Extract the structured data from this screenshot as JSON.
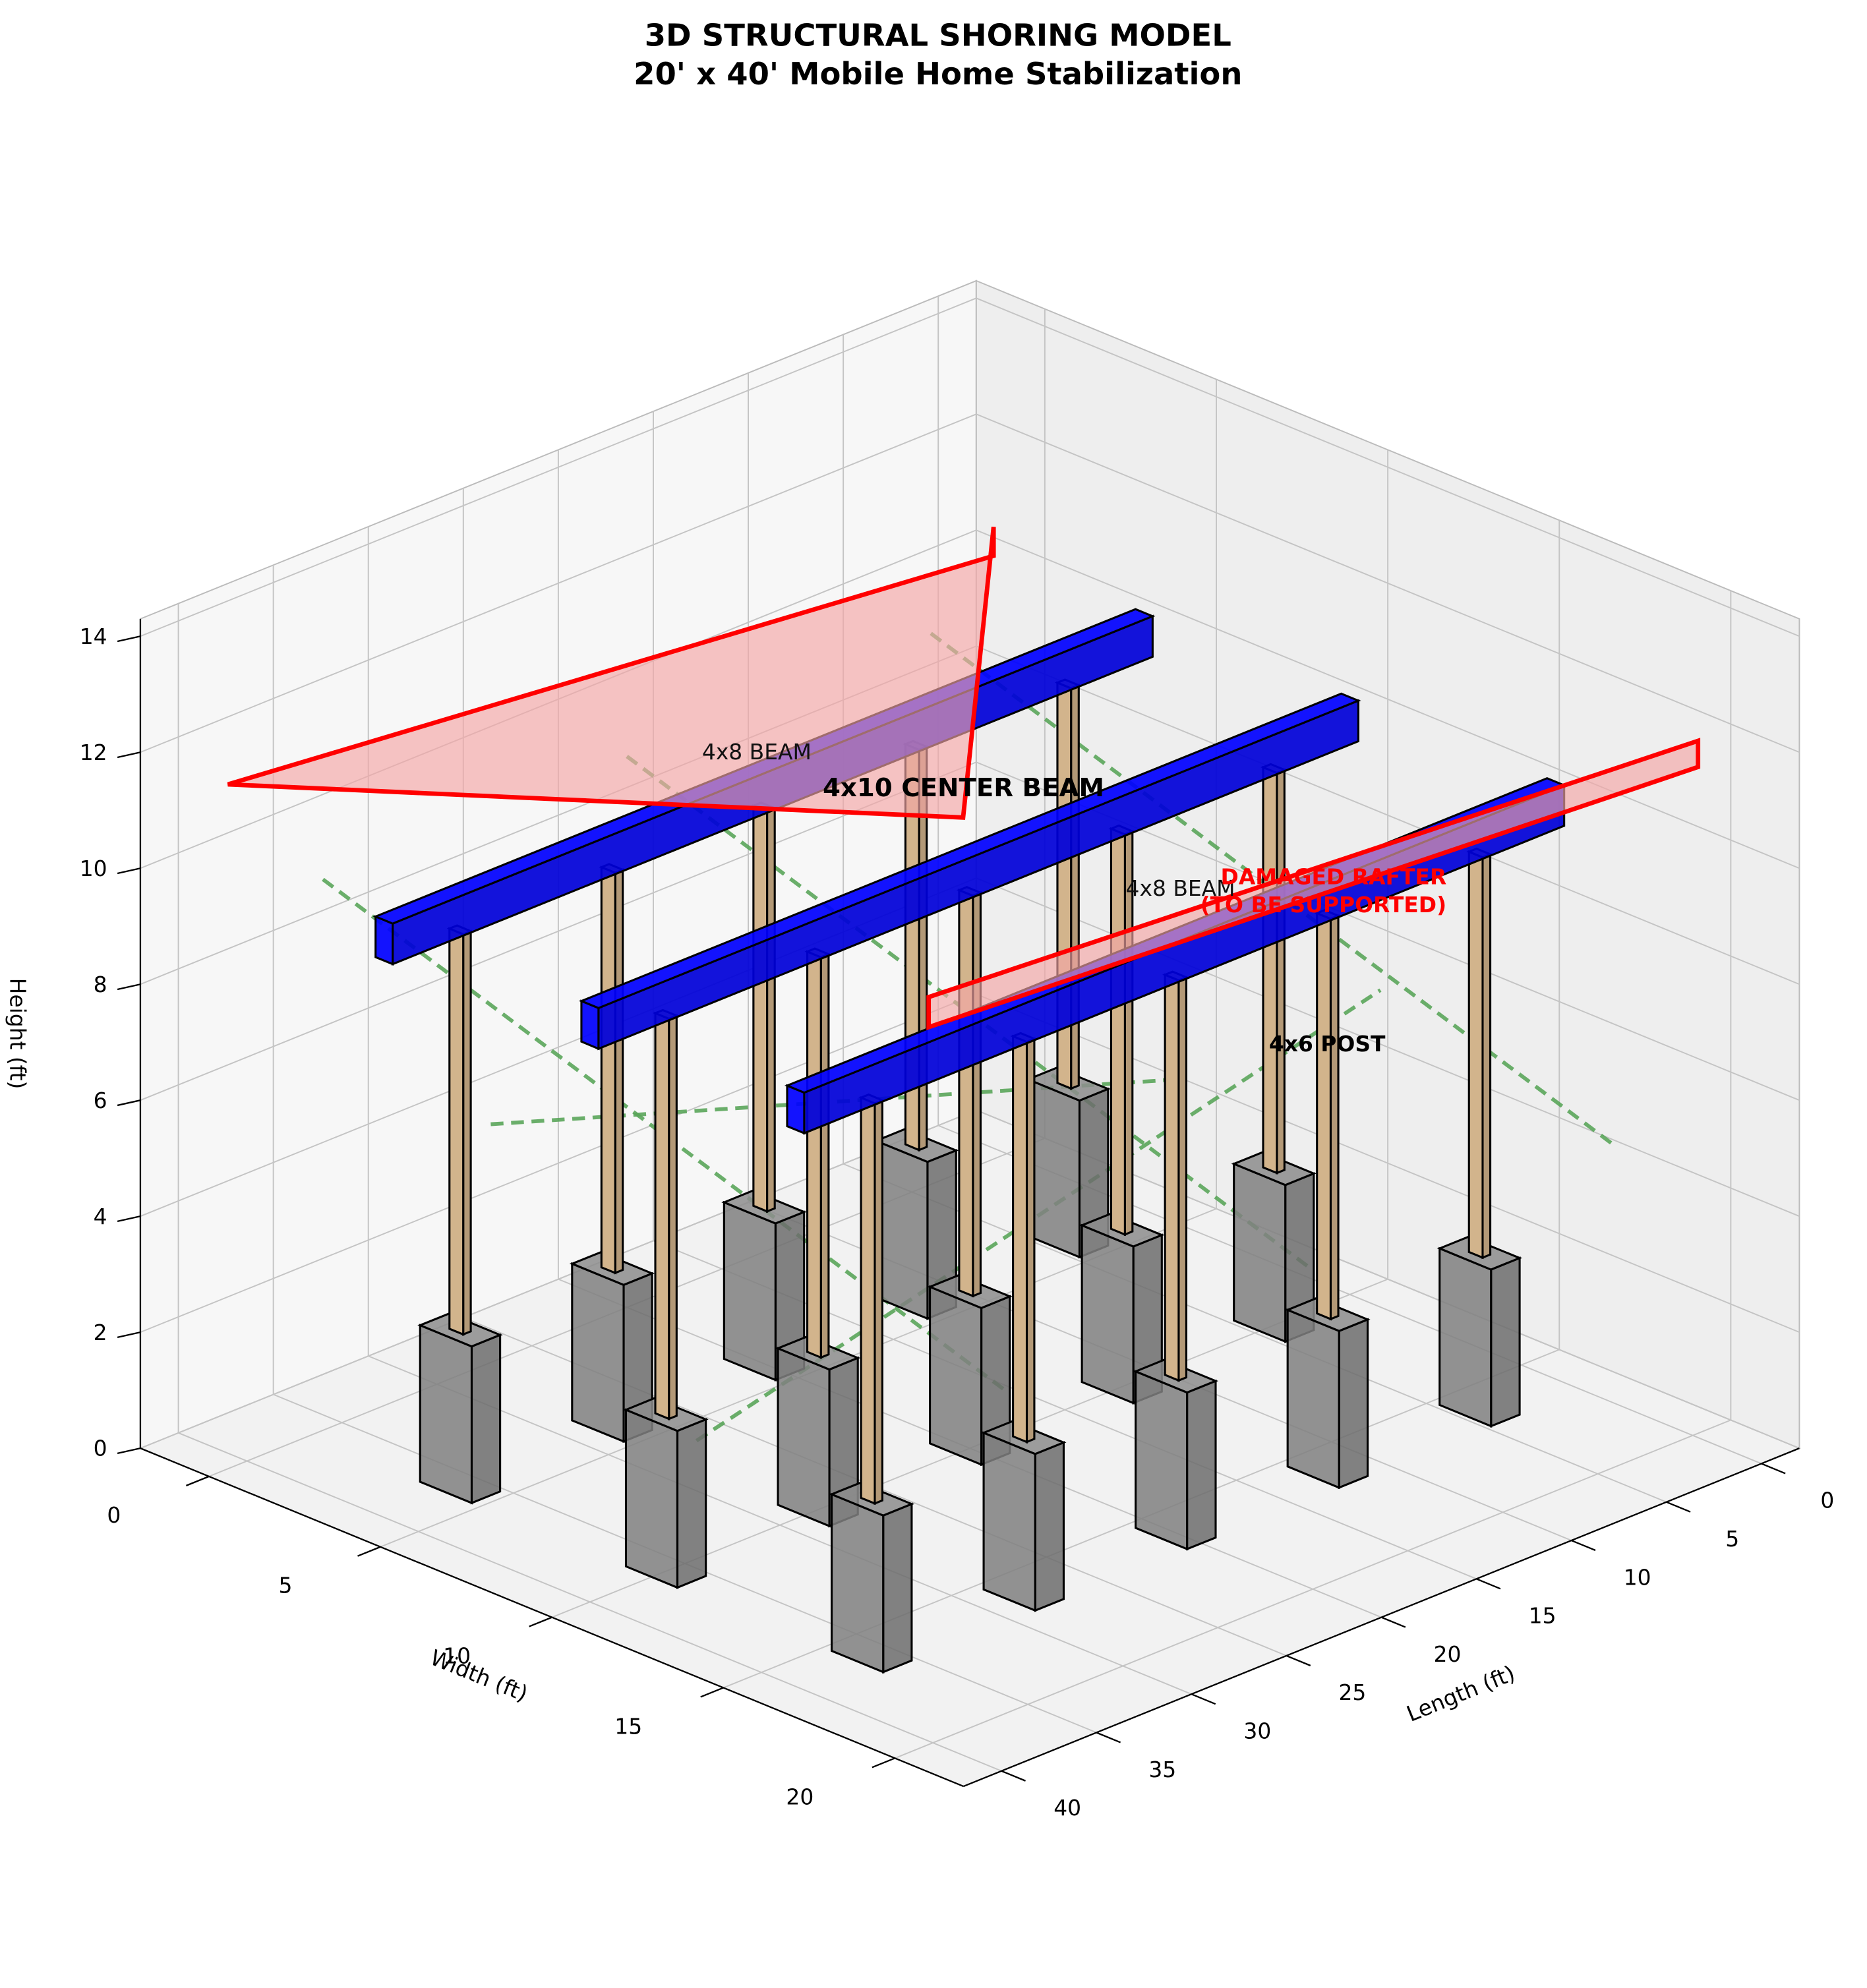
{
  "chart_data": {
    "type": "3d-structure",
    "title": "3D STRUCTURAL SHORING MODEL",
    "subtitle": "20' x 40' Mobile Home Stabilization",
    "xlabel": "Length (ft)",
    "ylabel": "Width (ft)",
    "zlabel": "Height (ft)",
    "xlim": [
      -2,
      42
    ],
    "ylim": [
      -2,
      22
    ],
    "zlim": [
      0,
      14.3
    ],
    "xticks": [
      0,
      5,
      10,
      15,
      20,
      25,
      30,
      35,
      40
    ],
    "yticks": [
      0,
      5,
      10,
      15,
      20
    ],
    "zticks": [
      0,
      2,
      4,
      6,
      8,
      10,
      12,
      14
    ],
    "grid": true,
    "footings": {
      "color": "#808080",
      "size": 1.5,
      "height": 2.7
    },
    "posts": {
      "color": "#d2b48c",
      "size": 0.4,
      "top": 9.6,
      "positions": [
        [
          4,
          4
        ],
        [
          12,
          4
        ],
        [
          20,
          4
        ],
        [
          28,
          4
        ],
        [
          36,
          4
        ],
        [
          4,
          10
        ],
        [
          12,
          10
        ],
        [
          20,
          10
        ],
        [
          28,
          10
        ],
        [
          36,
          10
        ],
        [
          4,
          16
        ],
        [
          12,
          16
        ],
        [
          20,
          16
        ],
        [
          28,
          16
        ],
        [
          36,
          16
        ]
      ]
    },
    "beams": {
      "color": "#0000ff",
      "W": [
        4,
        10,
        16
      ],
      "L": [
        0,
        40
      ],
      "z": [
        9.6,
        10.3
      ],
      "size": 0.5
    },
    "braces": {
      "color": "#5aa55a",
      "lines": [
        [
          [
            36,
            0,
            9.5
          ],
          [
            36,
            20,
            5.5
          ]
        ],
        [
          [
            20,
            0,
            9.5
          ],
          [
            20,
            20,
            5.5
          ]
        ],
        [
          [
            4,
            0,
            9.5
          ],
          [
            4,
            20,
            5.5
          ]
        ],
        [
          [
            38,
            12,
            3
          ],
          [
            2,
            12,
            6
          ]
        ],
        [
          [
            38,
            6,
            7
          ],
          [
            2,
            6,
            3
          ]
        ]
      ]
    },
    "damaged": {
      "color": "#ff0000",
      "fill": "#f4a6a6",
      "polygons": [
        [
          [
            41,
            0,
            11.8
          ],
          [
            0.7,
            0,
            10.4
          ],
          [
            0.7,
            0,
            10.9
          ],
          [
            2.3,
            0,
            6.1
          ]
        ],
        [
          [
            33,
            16,
            10.44
          ],
          [
            -7.5,
            16,
            9.56
          ],
          [
            -7.5,
            16,
            10.01
          ],
          [
            33,
            16,
            10.96
          ]
        ]
      ]
    },
    "annotations": [
      "4x8 BEAM",
      "4x10 CENTER BEAM",
      "4x8 BEAM",
      "DAMAGED RAFTER",
      "(TO BE SUPPORTED)",
      "4x6 POST"
    ]
  }
}
